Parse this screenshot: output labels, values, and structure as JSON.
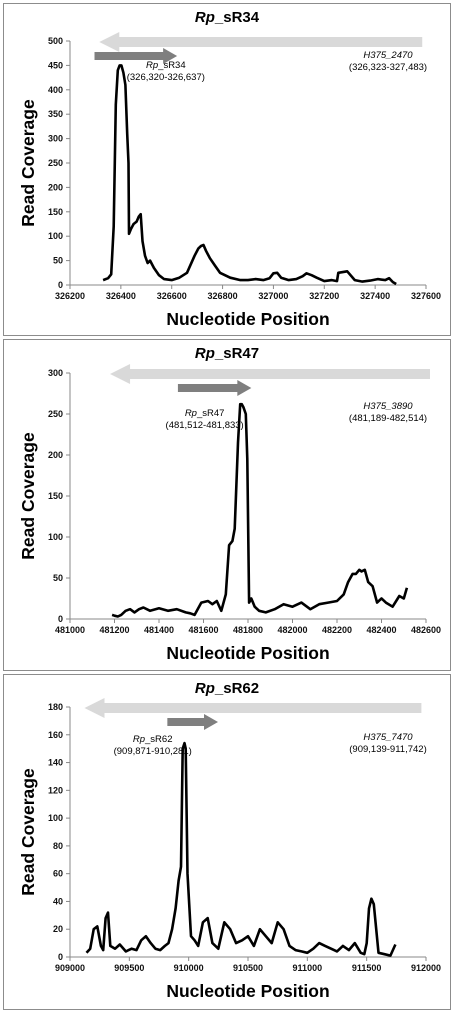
{
  "chart_data": [
    {
      "type": "line",
      "title_italic": "Rp",
      "title_rest": "_sR34",
      "xlabel": "Nucleotide Position",
      "ylabel": "Read Coverage",
      "xlim": [
        326200,
        327600
      ],
      "ylim": [
        0,
        500
      ],
      "xticks": [
        326200,
        326400,
        326600,
        326800,
        327000,
        327200,
        327400,
        327600
      ],
      "yticks": [
        0,
        50,
        100,
        150,
        200,
        250,
        300,
        350,
        400,
        450,
        500
      ],
      "grid": false,
      "gene_arrow": {
        "start": 326323,
        "end": 327483,
        "direction": "left",
        "color": "#d9d9d9",
        "name_italic": "H375_2470",
        "coords": "(326,323-327,483)"
      },
      "srna_arrow": {
        "start": 326320,
        "end": 326637,
        "direction": "right",
        "color": "#7f7f7f",
        "name_italic": "Rp",
        "name_rest": "_sR34",
        "coords": "(326,320-326,637)"
      },
      "series": [
        {
          "x": [
            326330,
            326350,
            326362,
            326372,
            326380,
            326388,
            326395,
            326402,
            326410,
            326418,
            326425,
            326430,
            326432,
            326440,
            326450,
            326462,
            326470,
            326478,
            326485,
            326495,
            326505,
            326515,
            326530,
            326550,
            326570,
            326600,
            326630,
            326660,
            326690,
            326705,
            326715,
            326725,
            326735,
            326750,
            326770,
            326790,
            326830,
            326870,
            326900,
            326930,
            326960,
            326985,
            327000,
            327015,
            327030,
            327060,
            327090,
            327115,
            327130,
            327150,
            327170,
            327200,
            327230,
            327250,
            327255,
            327290,
            327320,
            327350,
            327380,
            327410,
            327440,
            327455,
            327470,
            327483
          ],
          "y": [
            10,
            14,
            22,
            120,
            370,
            440,
            450,
            450,
            435,
            410,
            310,
            250,
            105,
            115,
            125,
            130,
            140,
            145,
            90,
            60,
            45,
            50,
            35,
            20,
            12,
            10,
            15,
            25,
            60,
            75,
            80,
            82,
            70,
            55,
            40,
            25,
            15,
            10,
            10,
            12,
            10,
            14,
            24,
            25,
            15,
            10,
            12,
            18,
            24,
            20,
            15,
            8,
            10,
            8,
            25,
            28,
            10,
            7,
            9,
            12,
            10,
            14,
            6,
            2
          ]
        }
      ]
    },
    {
      "type": "line",
      "title_italic": "Rp",
      "title_rest": "_sR47",
      "xlabel": "Nucleotide Position",
      "ylabel": "Read Coverage",
      "xlim": [
        481000,
        482600
      ],
      "ylim": [
        0,
        300
      ],
      "xticks": [
        481000,
        481200,
        481400,
        481600,
        481800,
        482000,
        482200,
        482400,
        482600
      ],
      "yticks": [
        0,
        50,
        100,
        150,
        200,
        250,
        300
      ],
      "grid": false,
      "gene_arrow": {
        "start": 481189,
        "end": 482514,
        "direction": "left",
        "color": "#d9d9d9",
        "name_italic": "H375_3890",
        "coords": "(481,189-482,514)"
      },
      "srna_arrow": {
        "start": 481512,
        "end": 481833,
        "direction": "right",
        "color": "#7f7f7f",
        "name_italic": "Rp",
        "name_rest": "_sR47",
        "coords": "(481,512-481,833)"
      },
      "series": [
        {
          "x": [
            481189,
            481200,
            481215,
            481230,
            481250,
            481270,
            481290,
            481310,
            481330,
            481360,
            481400,
            481440,
            481480,
            481520,
            481540,
            481560,
            481590,
            481620,
            481640,
            481660,
            481680,
            481700,
            481715,
            481730,
            481740,
            481755,
            481765,
            481772,
            481780,
            481790,
            481797,
            481805,
            481815,
            481830,
            481850,
            481880,
            481920,
            481960,
            482000,
            482040,
            482080,
            482120,
            482160,
            482200,
            482230,
            482250,
            482270,
            482285,
            482300,
            482310,
            482325,
            482340,
            482360,
            482380,
            482400,
            482420,
            482450,
            482480,
            482500,
            482514
          ],
          "y": [
            5,
            4,
            3,
            5,
            10,
            12,
            8,
            12,
            14,
            10,
            13,
            10,
            12,
            8,
            7,
            5,
            20,
            22,
            18,
            22,
            10,
            30,
            90,
            95,
            110,
            215,
            262,
            262,
            258,
            250,
            195,
            20,
            25,
            15,
            10,
            8,
            12,
            18,
            15,
            20,
            12,
            18,
            20,
            22,
            30,
            45,
            55,
            55,
            60,
            58,
            60,
            45,
            40,
            20,
            25,
            20,
            15,
            28,
            25,
            38
          ]
        }
      ]
    },
    {
      "type": "line",
      "title_italic": "Rp",
      "title_rest": "_sR62",
      "xlabel": "Nucleotide Position",
      "ylabel": "Read Coverage",
      "xlim": [
        909000,
        912000
      ],
      "ylim": [
        0,
        180
      ],
      "xticks": [
        909000,
        909500,
        910000,
        910500,
        911000,
        911500,
        912000
      ],
      "yticks": [
        0,
        20,
        40,
        60,
        80,
        100,
        120,
        140,
        160,
        180
      ],
      "grid": false,
      "gene_arrow": {
        "start": 909139,
        "end": 911742,
        "direction": "left",
        "color": "#d9d9d9",
        "name_italic": "H375_7470",
        "coords": "(909,139-911,742)"
      },
      "srna_arrow": {
        "start": 909871,
        "end": 910281,
        "direction": "right",
        "color": "#7f7f7f",
        "name_italic": "Rp",
        "name_rest": "_sR62",
        "coords": "(909,871-910,281)"
      },
      "series": [
        {
          "x": [
            909139,
            909170,
            909200,
            909230,
            909260,
            909280,
            909300,
            909320,
            909340,
            909380,
            909420,
            909470,
            909520,
            909560,
            909600,
            909640,
            909680,
            909720,
            909760,
            909800,
            909830,
            909860,
            909890,
            909915,
            909935,
            909950,
            909965,
            909975,
            909990,
            910020,
            910050,
            910080,
            910120,
            910160,
            910200,
            910250,
            910300,
            910350,
            910400,
            910450,
            910500,
            910550,
            910600,
            910650,
            910700,
            910750,
            910800,
            910850,
            910900,
            910950,
            911000,
            911050,
            911100,
            911150,
            911200,
            911250,
            911300,
            911350,
            911400,
            911450,
            911480,
            911500,
            911520,
            911540,
            911560,
            911600,
            911650,
            911700,
            911742
          ],
          "y": [
            3,
            6,
            20,
            22,
            8,
            5,
            28,
            32,
            8,
            6,
            9,
            4,
            6,
            5,
            12,
            15,
            10,
            6,
            5,
            8,
            10,
            20,
            35,
            55,
            65,
            150,
            154,
            150,
            60,
            15,
            12,
            8,
            25,
            28,
            10,
            6,
            25,
            20,
            10,
            12,
            15,
            8,
            20,
            15,
            10,
            25,
            20,
            8,
            5,
            4,
            3,
            6,
            10,
            8,
            6,
            4,
            8,
            5,
            10,
            3,
            2,
            10,
            35,
            42,
            38,
            3,
            2,
            1,
            9
          ]
        }
      ]
    }
  ]
}
